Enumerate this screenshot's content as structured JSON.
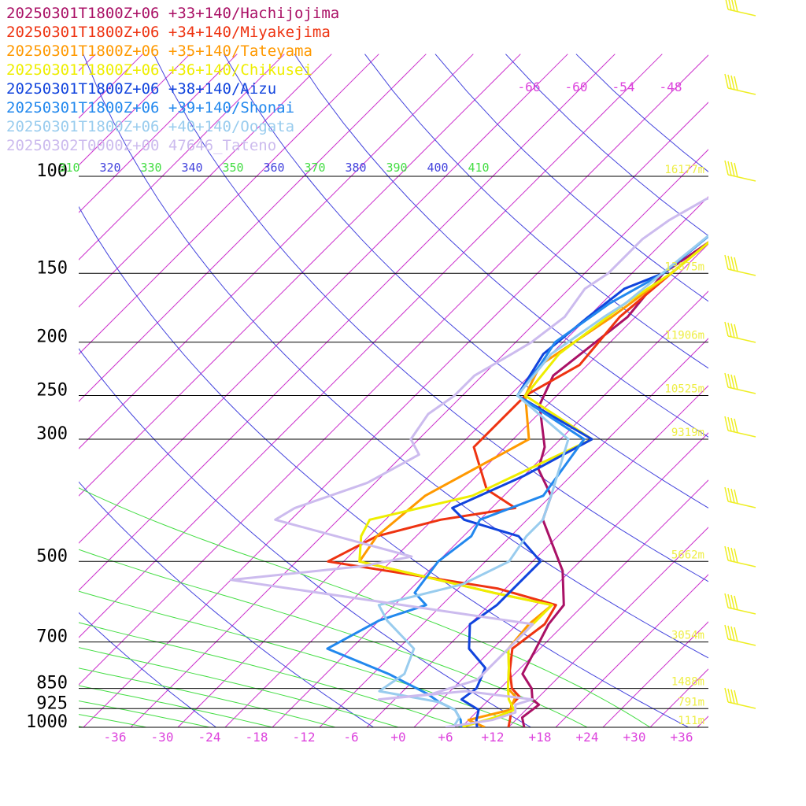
{
  "chart_data": {
    "type": "line",
    "title": "",
    "xlabel": "",
    "ylabel": "",
    "xlim": [
      -42,
      42
    ],
    "ylim": [
      1000,
      100
    ],
    "pressure_levels": [
      {
        "p": 100,
        "label": "100",
        "height": "16177m"
      },
      {
        "p": 150,
        "label": "150",
        "height": "13675m"
      },
      {
        "p": 200,
        "label": "200",
        "height": "11906m"
      },
      {
        "p": 250,
        "label": "250",
        "height": "10525m"
      },
      {
        "p": 300,
        "label": "300",
        "height": "9319m"
      },
      {
        "p": 500,
        "label": "500",
        "height": "5662m"
      },
      {
        "p": 700,
        "label": "700",
        "height": "3054m"
      },
      {
        "p": 850,
        "label": "850",
        "height": "1488m"
      },
      {
        "p": 925,
        "label": "925",
        "height": "791m"
      },
      {
        "p": 1000,
        "label": "1000",
        "height": "111m"
      }
    ],
    "x_ticks": [
      "-36",
      "-30",
      "-24",
      "-18",
      "-12",
      "-6",
      "+0",
      "+6",
      "+12",
      "+18",
      "+24",
      "+30",
      "+36"
    ],
    "upper_temp_labels": [
      "-66",
      "-60",
      "-54",
      "-48"
    ],
    "theta_labels": [
      "310",
      "320",
      "330",
      "340",
      "350",
      "360",
      "370",
      "380",
      "390",
      "400",
      "410"
    ],
    "series": [
      {
        "name": "20250301T1800Z+06 +33+140/Hachijojima",
        "color": "#aa1166",
        "points": [
          [
            16,
            1000
          ],
          [
            14.5,
            960
          ],
          [
            15,
            910
          ],
          [
            13.5,
            890
          ],
          [
            12,
            850
          ],
          [
            9,
            800
          ],
          [
            7.5,
            720
          ],
          [
            6,
            650
          ],
          [
            5.5,
            600
          ],
          [
            1,
            520
          ],
          [
            -8,
            420
          ],
          [
            -10,
            380
          ],
          [
            -15,
            340
          ],
          [
            -17,
            310
          ],
          [
            -23,
            260
          ],
          [
            -25,
            230
          ],
          [
            -23,
            180
          ],
          [
            -24,
            150
          ],
          [
            -22,
            130
          ],
          [
            -20,
            110
          ],
          [
            -18,
            90
          ]
        ]
      },
      {
        "name": "20250301T1800Z+06 +34+140/Miyakejima",
        "color": "#ee3311",
        "points": [
          [
            14,
            1000
          ],
          [
            13,
            960
          ],
          [
            11.5,
            910
          ],
          [
            11.5,
            880
          ],
          [
            9.5,
            850
          ],
          [
            7,
            790
          ],
          [
            4.5,
            720
          ],
          [
            5.5,
            650
          ],
          [
            4.5,
            600
          ],
          [
            -5,
            560
          ],
          [
            -30,
            500
          ],
          [
            -27,
            450
          ],
          [
            -21,
            420
          ],
          [
            -13,
            400
          ],
          [
            -19,
            370
          ],
          [
            -26,
            310
          ],
          [
            -26,
            250
          ],
          [
            -23,
            220
          ],
          [
            -24,
            180
          ],
          [
            -23,
            150
          ],
          [
            -21,
            110
          ]
        ]
      },
      {
        "name": "20250301T1800Z+06 +35+140/Tateyama",
        "color": "#ff9900",
        "points": [
          [
            11,
            1000
          ],
          [
            8,
            970
          ],
          [
            12,
            930
          ],
          [
            11,
            880
          ],
          [
            9,
            850
          ],
          [
            6.5,
            780
          ],
          [
            4,
            720
          ],
          [
            3.5,
            650
          ],
          [
            4,
            600
          ],
          [
            -5,
            570
          ],
          [
            -26,
            500
          ],
          [
            -27,
            450
          ],
          [
            -26,
            380
          ],
          [
            -20,
            300
          ],
          [
            -26,
            250
          ],
          [
            -28,
            220
          ],
          [
            -25,
            180
          ],
          [
            -23,
            150
          ],
          [
            -21,
            110
          ]
        ]
      },
      {
        "name": "20250301T1800Z+06 +36+140/Chikusei",
        "color": "#eeee00",
        "points": [
          [
            8,
            1000
          ],
          [
            11,
            960
          ],
          [
            12.5,
            930
          ],
          [
            10.5,
            890
          ],
          [
            9,
            850
          ],
          [
            6.5,
            780
          ],
          [
            4,
            720
          ],
          [
            4,
            650
          ],
          [
            4,
            600
          ],
          [
            -5,
            570
          ],
          [
            -26,
            500
          ],
          [
            -29,
            450
          ],
          [
            -30,
            420
          ],
          [
            -20,
            380
          ],
          [
            -12,
            300
          ],
          [
            -26,
            250
          ],
          [
            -27,
            210
          ],
          [
            -25,
            170
          ],
          [
            -23,
            150
          ],
          [
            -21,
            110
          ]
        ]
      },
      {
        "name": "20250301T1800Z+06 +38+140/Aizu",
        "color": "#1144dd",
        "points": [
          [
            10,
            1000
          ],
          [
            9,
            970
          ],
          [
            8,
            930
          ],
          [
            4.5,
            890
          ],
          [
            5,
            850
          ],
          [
            3.5,
            780
          ],
          [
            -1,
            720
          ],
          [
            -4,
            650
          ],
          [
            -3,
            600
          ],
          [
            -3,
            550
          ],
          [
            -3,
            500
          ],
          [
            -9,
            450
          ],
          [
            -18,
            420
          ],
          [
            -21,
            400
          ],
          [
            -16,
            350
          ],
          [
            -12,
            300
          ],
          [
            -27,
            250
          ],
          [
            -29,
            210
          ],
          [
            -28,
            180
          ],
          [
            -27,
            160
          ],
          [
            -24,
            150
          ],
          [
            -22,
            110
          ]
        ]
      },
      {
        "name": "20250301T1800Z+06 +39+140/Shonai",
        "color": "#2288ee",
        "points": [
          [
            8,
            1000
          ],
          [
            7,
            970
          ],
          [
            5,
            930
          ],
          [
            2,
            900
          ],
          [
            -0.5,
            870
          ],
          [
            -8,
            800
          ],
          [
            -19,
            720
          ],
          [
            -16,
            640
          ],
          [
            -12,
            600
          ],
          [
            -15,
            570
          ],
          [
            -16,
            500
          ],
          [
            -15,
            450
          ],
          [
            -16,
            420
          ],
          [
            -11,
            380
          ],
          [
            -13,
            300
          ],
          [
            -27,
            250
          ],
          [
            -28,
            220
          ],
          [
            -29,
            200
          ],
          [
            -27,
            170
          ],
          [
            -24,
            150
          ],
          [
            -22,
            110
          ]
        ]
      },
      {
        "name": "20250301T1800Z+06 +40+140/Oogata",
        "color": "#99ccee",
        "points": [
          [
            7,
            1000
          ],
          [
            6.5,
            960
          ],
          [
            5,
            930
          ],
          [
            2,
            900
          ],
          [
            -7,
            860
          ],
          [
            -6,
            800
          ],
          [
            -8,
            720
          ],
          [
            -15,
            640
          ],
          [
            -18,
            600
          ],
          [
            -10,
            550
          ],
          [
            -7,
            500
          ],
          [
            -8,
            450
          ],
          [
            -8,
            420
          ],
          [
            -10,
            380
          ],
          [
            -15,
            300
          ],
          [
            -27,
            250
          ],
          [
            -28,
            210
          ],
          [
            -26,
            180
          ],
          [
            -25,
            170
          ],
          [
            -22,
            110
          ]
        ]
      },
      {
        "name": "20250302T0000Z+00 47646_Tateno",
        "color": "#ccbbee",
        "points": [
          [
            6,
            1000
          ],
          [
            11,
            970
          ],
          [
            13,
            940
          ],
          [
            12,
            910
          ],
          [
            13.5,
            890
          ],
          [
            4,
            860
          ],
          [
            -6,
            890
          ],
          [
            0,
            870
          ],
          [
            4,
            820
          ],
          [
            4,
            760
          ],
          [
            4,
            700
          ],
          [
            4,
            650
          ],
          [
            -40,
            540
          ],
          [
            -25,
            510
          ],
          [
            -20,
            490
          ],
          [
            -42,
            420
          ],
          [
            -41,
            400
          ],
          [
            -35,
            360
          ],
          [
            -32,
            320
          ],
          [
            -35,
            300
          ],
          [
            -36,
            270
          ],
          [
            -35,
            250
          ],
          [
            -35,
            230
          ],
          [
            -33,
            210
          ],
          [
            -32,
            200
          ],
          [
            -31,
            180
          ],
          [
            -32,
            160
          ],
          [
            -31,
            150
          ],
          [
            -31,
            130
          ],
          [
            -30,
            120
          ],
          [
            -28,
            110
          ],
          [
            -23,
            100
          ]
        ]
      }
    ],
    "grid": true,
    "legend_position": "top-left"
  }
}
